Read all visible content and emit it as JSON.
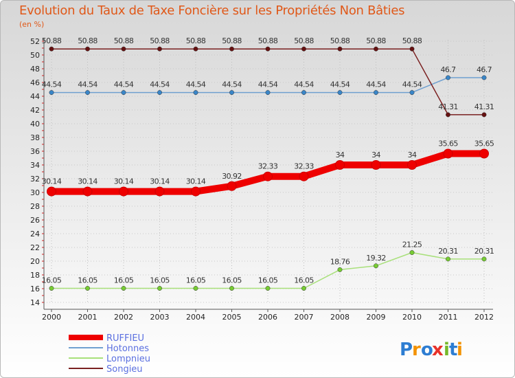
{
  "chart_data": {
    "type": "line",
    "title": "Evolution du Taux de Taxe Foncière sur les Propriétés Non Bâties",
    "ylabel": "(en %)",
    "xlabel": "",
    "categories": [
      "2000",
      "2001",
      "2002",
      "2003",
      "2004",
      "2005",
      "2006",
      "2007",
      "2008",
      "2009",
      "2010",
      "2011",
      "2012"
    ],
    "ylim": [
      14,
      52
    ],
    "yticks": [
      14,
      16,
      18,
      20,
      22,
      24,
      26,
      28,
      30,
      32,
      34,
      36,
      38,
      40,
      42,
      44,
      46,
      48,
      50,
      52
    ],
    "series": [
      {
        "name": "RUFFIEU",
        "color": "#ee0000",
        "thick": true,
        "values": [
          30.14,
          30.14,
          30.14,
          30.14,
          30.14,
          30.92,
          32.33,
          32.33,
          34,
          34,
          34,
          35.65,
          35.65
        ],
        "labels": [
          "30.14",
          "30.14",
          "30.14",
          "30.14",
          "30.14",
          "30.92",
          "32.33",
          "32.33",
          "34",
          "34",
          "34",
          "35.65",
          "35.65"
        ]
      },
      {
        "name": "Hotonnes",
        "color": "#6fa0d0",
        "marker": "#3a86c8",
        "values": [
          44.54,
          44.54,
          44.54,
          44.54,
          44.54,
          44.54,
          44.54,
          44.54,
          44.54,
          44.54,
          44.54,
          46.7,
          46.7
        ],
        "labels": [
          "44.54",
          "44.54",
          "44.54",
          "44.54",
          "44.54",
          "44.54",
          "44.54",
          "44.54",
          "44.54",
          "44.54",
          "44.54",
          "46.7",
          "46.7"
        ]
      },
      {
        "name": "Lompnieu",
        "color": "#a8e07a",
        "marker": "#77cc33",
        "values": [
          16.05,
          16.05,
          16.05,
          16.05,
          16.05,
          16.05,
          16.05,
          16.05,
          18.76,
          19.32,
          21.25,
          20.31,
          20.31
        ],
        "labels": [
          "16.05",
          "16.05",
          "16.05",
          "16.05",
          "16.05",
          "16.05",
          "16.05",
          "16.05",
          "18.76",
          "19.32",
          "21.25",
          "20.31",
          "20.31"
        ]
      },
      {
        "name": "Songieu",
        "color": "#7a2020",
        "marker": "#661111",
        "values": [
          50.88,
          50.88,
          50.88,
          50.88,
          50.88,
          50.88,
          50.88,
          50.88,
          50.88,
          50.88,
          50.88,
          41.31,
          41.31
        ],
        "labels": [
          "50.88",
          "50.88",
          "50.88",
          "50.88",
          "50.88",
          "50.88",
          "50.88",
          "50.88",
          "50.88",
          "50.88",
          "50.88",
          "41.31",
          "41.31"
        ]
      }
    ],
    "legend": "bottom-left"
  },
  "brand": {
    "letters": [
      "P",
      "r",
      "o",
      "x",
      "i",
      "t",
      "i"
    ],
    "colors": [
      "#2d7dd2",
      "#f39200",
      "#2d7dd2",
      "#e8322a",
      "#76b82a",
      "#2d7dd2",
      "#f39200"
    ]
  }
}
